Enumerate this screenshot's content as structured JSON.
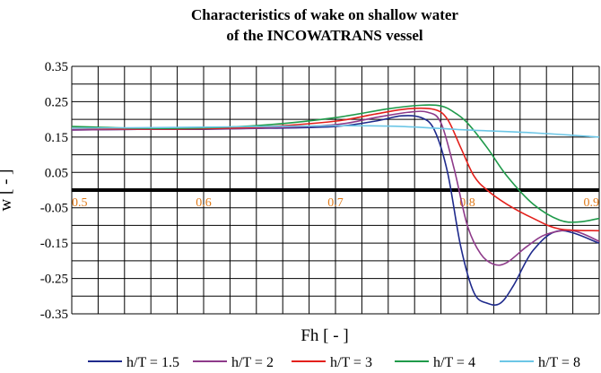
{
  "chart_data": {
    "type": "line",
    "title": [
      "Characteristics of wake on shallow water",
      "of the INCOWATRANS vessel"
    ],
    "xlabel": "Fh [ - ]",
    "ylabel": "w [ - ]",
    "xlim": [
      0.5,
      0.9
    ],
    "ylim": [
      -0.35,
      0.35
    ],
    "x_ticks": [
      "0.5",
      "0.6",
      "0.7",
      "0.8",
      "0.9"
    ],
    "y_ticks": [
      "0.35",
      "0.25",
      "0.15",
      "0.05",
      "-0.05",
      "-0.15",
      "-0.25",
      "-0.35"
    ],
    "grid": true,
    "legend_position": "bottom",
    "series": [
      {
        "name": "h/T = 1.5",
        "color": "#1f2a8c",
        "x": [
          0.5,
          0.55,
          0.6,
          0.65,
          0.7,
          0.73,
          0.75,
          0.765,
          0.775,
          0.785,
          0.795,
          0.805,
          0.815,
          0.825,
          0.835,
          0.85,
          0.87,
          0.9
        ],
        "y": [
          0.17,
          0.172,
          0.172,
          0.175,
          0.18,
          0.195,
          0.21,
          0.205,
          0.17,
          0.05,
          -0.16,
          -0.29,
          -0.32,
          -0.32,
          -0.27,
          -0.17,
          -0.115,
          -0.15
        ]
      },
      {
        "name": "h/T = 2",
        "color": "#8e3a8a",
        "x": [
          0.5,
          0.55,
          0.6,
          0.65,
          0.7,
          0.73,
          0.755,
          0.77,
          0.78,
          0.79,
          0.8,
          0.81,
          0.82,
          0.83,
          0.845,
          0.86,
          0.88,
          0.9
        ],
        "y": [
          0.17,
          0.172,
          0.173,
          0.176,
          0.185,
          0.205,
          0.22,
          0.22,
          0.19,
          0.06,
          -0.1,
          -0.18,
          -0.21,
          -0.205,
          -0.16,
          -0.125,
          -0.115,
          -0.145
        ]
      },
      {
        "name": "h/T = 3",
        "color": "#e3201b",
        "x": [
          0.5,
          0.55,
          0.6,
          0.65,
          0.7,
          0.73,
          0.755,
          0.775,
          0.785,
          0.795,
          0.805,
          0.815,
          0.83,
          0.85,
          0.87,
          0.9
        ],
        "y": [
          0.175,
          0.173,
          0.174,
          0.18,
          0.195,
          0.215,
          0.23,
          0.228,
          0.2,
          0.12,
          0.04,
          0.0,
          -0.04,
          -0.08,
          -0.11,
          -0.115
        ]
      },
      {
        "name": "h/T = 4",
        "color": "#1f9a4a",
        "x": [
          0.5,
          0.55,
          0.6,
          0.65,
          0.7,
          0.74,
          0.765,
          0.78,
          0.79,
          0.8,
          0.815,
          0.83,
          0.85,
          0.87,
          0.885,
          0.9
        ],
        "y": [
          0.18,
          0.175,
          0.176,
          0.185,
          0.205,
          0.23,
          0.24,
          0.238,
          0.22,
          0.19,
          0.12,
          0.04,
          -0.04,
          -0.085,
          -0.09,
          -0.08
        ]
      },
      {
        "name": "h/T = 8",
        "color": "#6cc6e6",
        "x": [
          0.5,
          0.6,
          0.7,
          0.75,
          0.8,
          0.85,
          0.9
        ],
        "y": [
          0.175,
          0.178,
          0.182,
          0.18,
          0.17,
          0.162,
          0.15
        ]
      }
    ]
  }
}
